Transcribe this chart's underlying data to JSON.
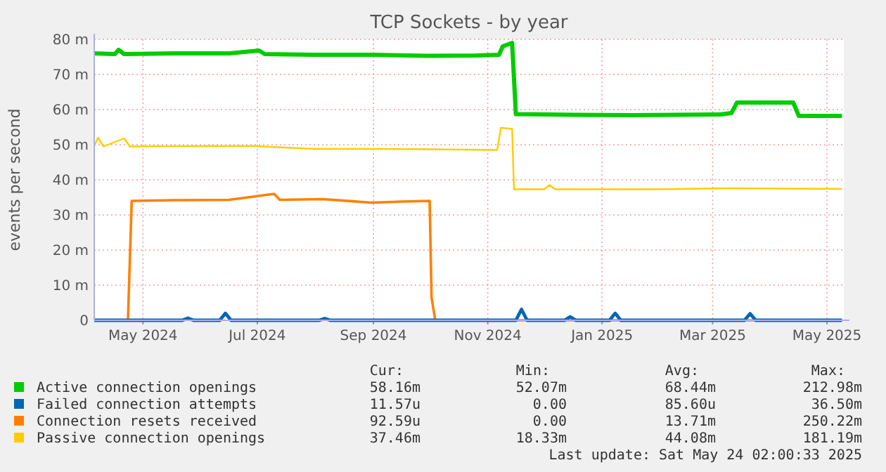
{
  "chart_data": {
    "type": "line",
    "title": "TCP Sockets - by year",
    "ylabel": "events per second",
    "xlim": [
      "2024-04-20",
      "2025-05-25"
    ],
    "xticks": [
      {
        "value": "2024-05-16",
        "label": "May 2024"
      },
      {
        "value": "2024-07-16",
        "label": "Jul 2024"
      },
      {
        "value": "2024-09-16",
        "label": "Sep 2024"
      },
      {
        "value": "2024-11-16",
        "label": "Nov 2024"
      },
      {
        "value": "2025-01-16",
        "label": "Jan 2025"
      },
      {
        "value": "2025-03-16",
        "label": "Mar 2025"
      },
      {
        "value": "2025-05-16",
        "label": "May 2025"
      }
    ],
    "ylim": [
      0,
      80
    ],
    "yticks": [
      0,
      {
        "value": 10,
        "label": "10 m"
      },
      {
        "value": 20,
        "label": "20 m"
      },
      {
        "value": 30,
        "label": "30 m"
      },
      {
        "value": 40,
        "label": "40 m"
      },
      {
        "value": 50,
        "label": "50 m"
      },
      {
        "value": 60,
        "label": "60 m"
      },
      {
        "value": 70,
        "label": "70 m"
      },
      {
        "value": 80,
        "label": "80 m"
      }
    ],
    "grid": true,
    "legend": "bottom",
    "marker": "none",
    "line_style": "solid",
    "series": [
      {
        "name": "Active connection openings",
        "color": "#00cc00",
        "x": [
          "2024-04-20",
          "2024-05-01",
          "2024-05-03",
          "2024-05-06",
          "2024-06-01",
          "2024-07-01",
          "2024-07-17",
          "2024-07-20",
          "2024-08-15",
          "2024-09-15",
          "2024-10-15",
          "2024-11-10",
          "2024-11-22",
          "2024-11-24",
          "2024-11-29",
          "2024-12-01",
          "2025-01-01",
          "2025-02-01",
          "2025-03-20",
          "2025-03-26",
          "2025-03-29",
          "2025-04-28",
          "2025-05-01",
          "2025-05-24"
        ],
        "values": [
          76,
          75.8,
          77,
          75.8,
          76,
          76,
          76.8,
          75.8,
          75.6,
          75.6,
          75.3,
          75.4,
          75.6,
          78,
          79,
          58.7,
          58.5,
          58.4,
          58.6,
          59,
          62,
          62,
          58.2,
          58.2
        ]
      },
      {
        "name": "Failed connection attempts",
        "color": "#0066b3",
        "x": [
          "2024-04-20",
          "2024-06-06",
          "2024-06-09",
          "2024-06-12",
          "2024-06-26",
          "2024-06-29",
          "2024-07-02",
          "2024-08-18",
          "2024-08-21",
          "2024-08-24",
          "2024-12-01",
          "2024-12-04",
          "2024-12-07",
          "2024-12-27",
          "2024-12-30",
          "2025-01-02",
          "2025-01-20",
          "2025-01-23",
          "2025-01-26",
          "2025-04-02",
          "2025-04-05",
          "2025-04-08",
          "2025-05-24"
        ],
        "values": [
          0,
          0,
          0.6,
          0,
          0,
          2,
          0,
          0,
          0.5,
          0,
          0,
          3.1,
          0,
          0,
          1,
          0,
          0,
          2,
          0,
          0,
          1.9,
          0,
          0
        ]
      },
      {
        "name": "Connection resets received",
        "color": "#ff8000",
        "x": [
          "2024-04-20",
          "2024-05-08",
          "2024-05-10",
          "2024-06-01",
          "2024-07-01",
          "2024-07-25",
          "2024-07-28",
          "2024-08-20",
          "2024-09-15",
          "2024-10-01",
          "2024-10-16",
          "2024-10-17",
          "2024-10-19",
          "2025-05-24"
        ],
        "values": [
          0,
          0,
          34,
          34.2,
          34.3,
          36,
          34.3,
          34.5,
          33.5,
          33.8,
          34,
          6.5,
          0,
          0
        ]
      },
      {
        "name": "Passive connection openings",
        "color": "#ffcc00",
        "x": [
          "2024-04-20",
          "2024-04-22",
          "2024-04-25",
          "2024-05-06",
          "2024-05-09",
          "2024-06-15",
          "2024-07-15",
          "2024-08-15",
          "2024-09-15",
          "2024-10-15",
          "2024-11-21",
          "2024-11-23",
          "2024-11-29",
          "2024-11-30",
          "2024-12-16",
          "2024-12-19",
          "2024-12-22",
          "2025-02-15",
          "2025-03-25",
          "2025-05-24"
        ],
        "values": [
          49.6,
          52,
          49.5,
          51.8,
          49.5,
          49.6,
          49.6,
          48.8,
          48.8,
          48.7,
          48.5,
          54.8,
          54.5,
          37.3,
          37.3,
          38.5,
          37.3,
          37.3,
          37.6,
          37.4
        ]
      }
    ],
    "annotations": [
      "Cur:",
      "Min:",
      "Avg:",
      "Max:",
      "58.16m",
      "52.07m",
      "68.44m",
      "212.98m",
      "11.57u",
      "0.00",
      "85.60u",
      "36.50m",
      "92.59u",
      "0.00",
      "13.71m",
      "250.22m",
      "37.46m",
      "18.33m",
      "44.08m",
      "181.19m",
      "Last update: Sat May 24 02:00:33 2025"
    ]
  }
}
